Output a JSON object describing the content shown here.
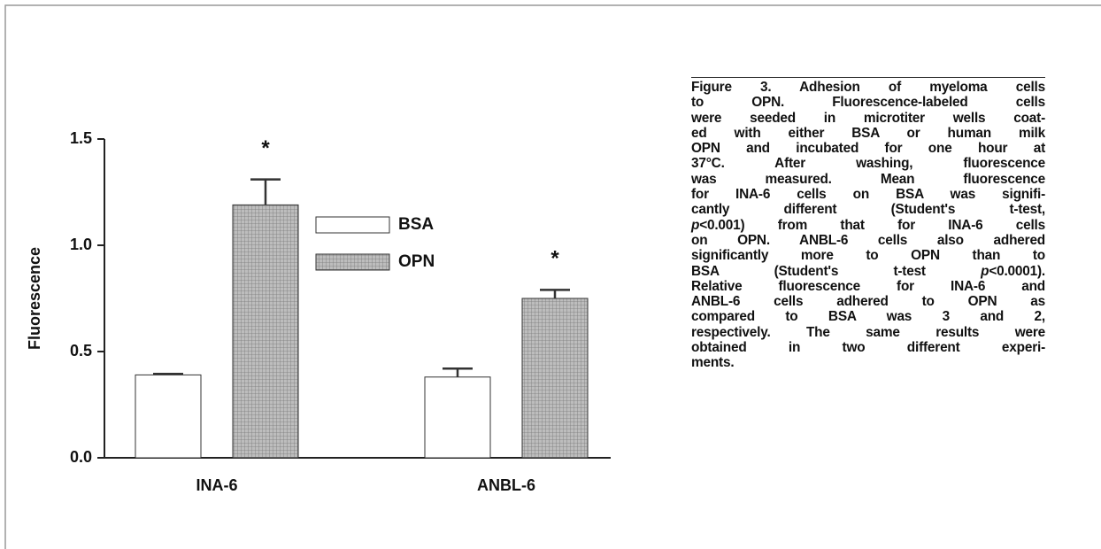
{
  "chart_data": {
    "type": "bar",
    "categories": [
      "INA-6",
      "ANBL-6"
    ],
    "series": [
      {
        "name": "BSA",
        "color": "#ffffff",
        "values": [
          0.39,
          0.38
        ],
        "errors": [
          0.005,
          0.04
        ]
      },
      {
        "name": "OPN",
        "color": "#a8a8a8",
        "pattern": "grid",
        "values": [
          1.19,
          0.75
        ],
        "errors": [
          0.12,
          0.04
        ]
      }
    ],
    "ylabel": "Fluorescence",
    "ylim": [
      0,
      1.5
    ],
    "yticks": [
      {
        "value": 0,
        "label": "0.0"
      },
      0.5,
      {
        "value": 1,
        "label": "1.0"
      },
      1.5
    ],
    "annotations": [
      "*",
      "*"
    ]
  },
  "caption_lines": [
    "Figure 3. Adhesion of myeloma cells",
    "to OPN. Fluorescence-labeled cells",
    "were seeded in microtiter wells coat-",
    "ed with either BSA or human milk",
    "OPN and incubated for one hour at",
    "37°C.  After washing, fluorescence",
    "was measured. Mean fluorescence",
    "for INA-6 cells on BSA was signifi-",
    "cantly different (Student's t-test,",
    [
      {
        "italic": "p"
      },
      "<0.001) from that for INA-6 cells"
    ],
    "on OPN. ANBL-6 cells also adhered",
    "significantly more to OPN than to",
    [
      "BSA (Student's t-test ",
      {
        "italic": "p"
      },
      "<0.0001)."
    ],
    "Relative fluorescence for INA-6 and",
    "ANBL-6 cells adhered to OPN as",
    "compared to BSA was 3 and 2,",
    "respectively. The same results were",
    "obtained in two different experi-",
    "ments."
  ]
}
